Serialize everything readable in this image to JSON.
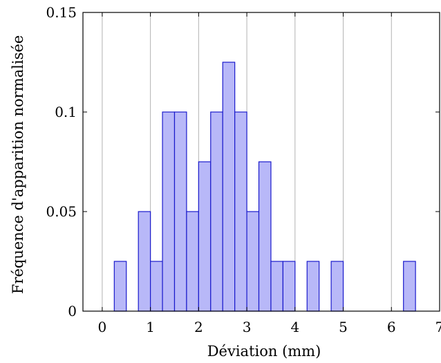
{
  "chart_data": {
    "type": "bar",
    "title": "",
    "xlabel": "Déviation (mm)",
    "ylabel": "Fréquence d'apparition normalisée",
    "xlim": [
      -0.4,
      7
    ],
    "ylim": [
      0,
      0.15
    ],
    "xticks": [
      0,
      1,
      2,
      3,
      4,
      5,
      6,
      7
    ],
    "xtick_labels": [
      "0",
      "1",
      "2",
      "3",
      "4",
      "5",
      "6",
      "7"
    ],
    "yticks": [
      0,
      0.05,
      0.1,
      0.15
    ],
    "ytick_labels": [
      "0",
      "0.05",
      "0.1",
      "0.15"
    ],
    "grid": "vertical",
    "bin_width": 0.25,
    "bar_fill": "#b8b8f8",
    "bar_stroke": "#1a1acc",
    "bins": [
      {
        "x0": 0.25,
        "value": 0.025
      },
      {
        "x0": 0.75,
        "value": 0.05
      },
      {
        "x0": 1.0,
        "value": 0.025
      },
      {
        "x0": 1.25,
        "value": 0.1
      },
      {
        "x0": 1.5,
        "value": 0.1
      },
      {
        "x0": 1.75,
        "value": 0.05
      },
      {
        "x0": 2.0,
        "value": 0.075
      },
      {
        "x0": 2.25,
        "value": 0.1
      },
      {
        "x0": 2.5,
        "value": 0.125
      },
      {
        "x0": 2.75,
        "value": 0.1
      },
      {
        "x0": 3.0,
        "value": 0.05
      },
      {
        "x0": 3.25,
        "value": 0.075
      },
      {
        "x0": 3.5,
        "value": 0.025
      },
      {
        "x0": 3.75,
        "value": 0.025
      },
      {
        "x0": 4.25,
        "value": 0.025
      },
      {
        "x0": 4.75,
        "value": 0.025
      },
      {
        "x0": 6.25,
        "value": 0.025
      }
    ]
  }
}
